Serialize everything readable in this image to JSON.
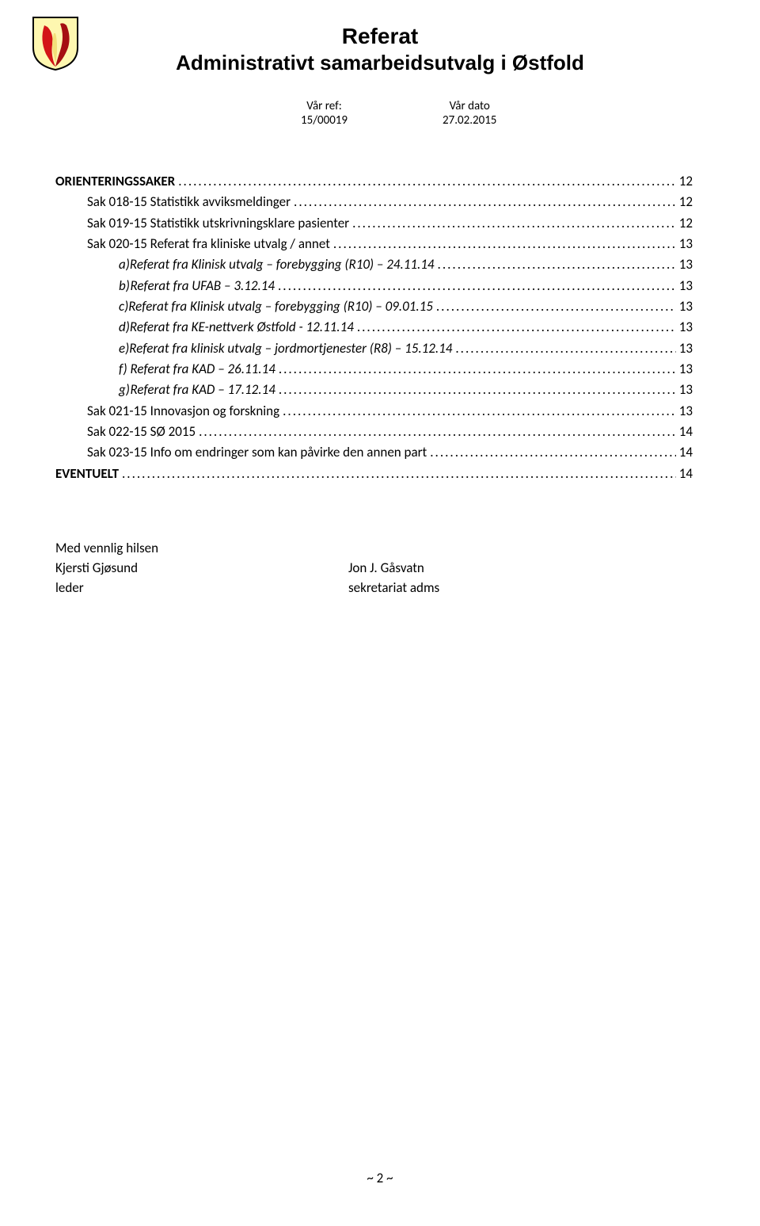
{
  "header": {
    "title1": "Referat",
    "title2": "Administrativt samarbeidsutvalg i Østfold",
    "ref_label": "Vår ref:",
    "ref_value": "15/00019",
    "date_label": "Vår dato",
    "date_value": "27.02.2015"
  },
  "logo": {
    "border": "#000000",
    "bg": "#fef7b0",
    "flame_red": "#d31417",
    "flame_dark": "#a50f12",
    "flame_inner": "#f3e07a"
  },
  "toc": [
    {
      "label": "ORIENTERINGSSAKER",
      "page": "12",
      "bold": true,
      "link": true
    },
    {
      "label": "Sak 018-15 Statistikk avviksmeldinger",
      "page": "12",
      "indent": 1,
      "link": true
    },
    {
      "label": "Sak 019-15 Statistikk utskrivningsklare pasienter",
      "page": "12",
      "indent": 1,
      "link": true
    },
    {
      "label": "Sak 020-15 Referat fra kliniske utvalg / annet",
      "page": "13",
      "indent": 1,
      "link": true
    },
    {
      "letter": "a)",
      "label": "Referat fra Klinisk utvalg – forebygging (R10) – 24.11.14",
      "page": "13",
      "indent": 2,
      "italic": true,
      "link": true
    },
    {
      "letter": "b)",
      "label": "Referat fra UFAB – 3.12.14",
      "page": "13",
      "indent": 2,
      "italic": true,
      "link": true
    },
    {
      "letter": "c)",
      "label": "Referat fra Klinisk utvalg – forebygging (R10) – 09.01.15",
      "page": "13",
      "indent": 2,
      "italic": true,
      "link": true
    },
    {
      "letter": "d)",
      "label": "Referat fra KE-nettverk Østfold - 12.11.14",
      "page": "13",
      "indent": 2,
      "italic": true,
      "link": true
    },
    {
      "letter": "e)",
      "label": "Referat fra klinisk utvalg – jordmortjenester (R8) – 15.12.14",
      "page": "13",
      "indent": 2,
      "italic": true,
      "link": true
    },
    {
      "letter": "f)",
      "label": "Referat fra KAD – 26.11.14",
      "page": "13",
      "indent": 2,
      "italic": true,
      "link": true
    },
    {
      "letter": "g)",
      "label": "Referat fra KAD – 17.12.14",
      "page": "13",
      "indent": 2,
      "italic": true,
      "link": true
    },
    {
      "label": "Sak 021-15 Innovasjon og forskning",
      "page": "13",
      "indent": 1,
      "link": true
    },
    {
      "label": "Sak 022-15 SØ 2015",
      "page": "14",
      "indent": 1,
      "link": true
    },
    {
      "label": "Sak 023-15 Info om endringer som kan påvirke den annen part",
      "page": "14",
      "indent": 1,
      "link": true
    },
    {
      "label": "EVENTUELT",
      "page": "14",
      "bold": true,
      "link": true
    }
  ],
  "signoff": {
    "greeting": "Med vennlig hilsen",
    "left_name": "Kjersti Gjøsund",
    "left_role": "leder",
    "right_name": "Jon J. Gåsvatn",
    "right_role": "sekretariat adms"
  },
  "pagenum": "~ 2 ~"
}
